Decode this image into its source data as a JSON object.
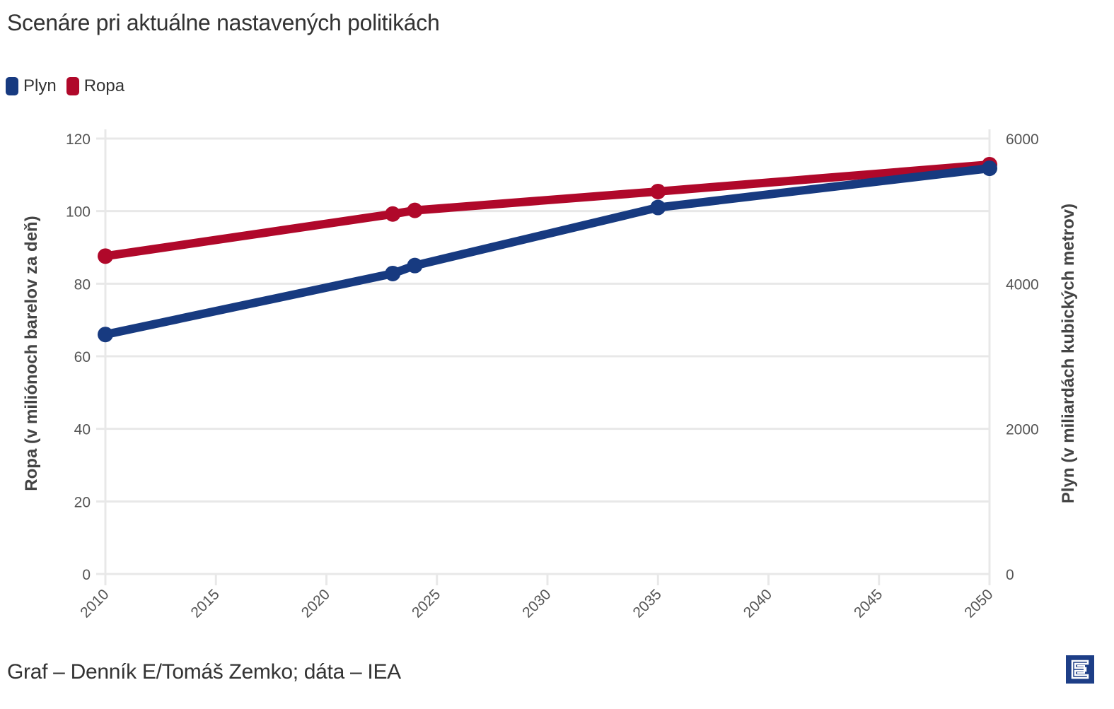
{
  "header": {
    "title": "Scenáre pri aktuálne nastavených politikách"
  },
  "legend": [
    {
      "label": "Plyn",
      "color": "#173a80"
    },
    {
      "label": "Ropa",
      "color": "#b0082a"
    }
  ],
  "axes": {
    "left_title": "Ropa (v miliónoch barelov za deň)",
    "right_title": "Plyn (v miliardách kubických metrov)",
    "left_ticks": [
      "0",
      "20",
      "40",
      "60",
      "80",
      "100",
      "120"
    ],
    "right_ticks": [
      "0",
      "2000",
      "4000",
      "6000"
    ],
    "x_ticks": [
      "2010",
      "2015",
      "2020",
      "2025",
      "2030",
      "2035",
      "2040",
      "2045",
      "2050"
    ]
  },
  "footer": {
    "credit": "Graf – Denník E/Tomáš Zemko; dáta – IEA",
    "logo_icon": "denník-e-logo-icon"
  },
  "chart_data": {
    "type": "line",
    "title": "Scenáre pri aktuálne nastavených politikách",
    "xlabel": "",
    "ylabel": "Ropa (v miliónoch barelov za deň)",
    "y2label": "Plyn (v miliardách kubických metrov)",
    "x": [
      2010,
      2023,
      2024,
      2035,
      2050
    ],
    "series": [
      {
        "name": "Ropa",
        "axis": "left",
        "color": "#b0082a",
        "values": [
          87.6,
          99.2,
          100.2,
          105.4,
          112.8
        ]
      },
      {
        "name": "Plyn",
        "axis": "right",
        "color": "#173a80",
        "values": [
          3300,
          4140,
          4250,
          5050,
          5590
        ]
      }
    ],
    "xlim": [
      2010,
      2050
    ],
    "ylim": [
      0,
      120
    ],
    "y2lim": [
      0,
      6000
    ],
    "x_ticks": [
      2010,
      2015,
      2020,
      2025,
      2030,
      2035,
      2040,
      2045,
      2050
    ],
    "y_ticks": [
      0,
      20,
      40,
      60,
      80,
      100,
      120
    ],
    "y2_ticks": [
      0,
      2000,
      4000,
      6000
    ],
    "grid": true,
    "legend_position": "top-left"
  }
}
